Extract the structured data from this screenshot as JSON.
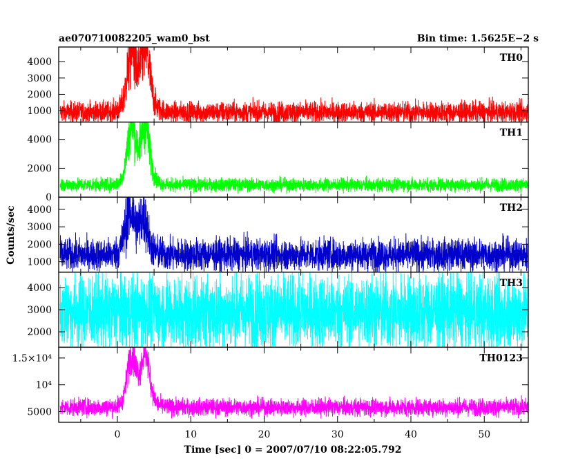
{
  "header": {
    "title": "ae070710082205_wam0_bst",
    "bin_time": "Bin time: 1.5625E−2 s"
  },
  "ylabel": "Counts/sec",
  "xlabel": "Time [sec] 0 = 2007/07/10 08:22:05.792",
  "chart_data": {
    "type": "line",
    "title": "ae070710082205_wam0_bst",
    "subtitle": "Bin time: 1.5625E−2 s",
    "xlabel": "Time [sec] 0 = 2007/07/10 08:22:05.792",
    "ylabel": "Counts/sec",
    "xlim": [
      -8,
      56
    ],
    "xticks": [
      0,
      10,
      20,
      30,
      40,
      50
    ],
    "panels": [
      {
        "name": "TH0",
        "color": "#ff0000",
        "ylim": [
          300,
          4900
        ],
        "yticks": [
          1000,
          2000,
          3000,
          4000
        ],
        "ytick_labels": [
          "1000",
          "2000",
          "3000",
          "4000"
        ],
        "baseline_mean": 900,
        "baseline_noise": 320,
        "peaks": [
          {
            "t": 1.9,
            "amp": 2900,
            "w": 0.8
          },
          {
            "t": 3.8,
            "amp": 3000,
            "w": 0.8
          },
          {
            "t": 3.0,
            "amp": 1200,
            "w": 2.0
          }
        ]
      },
      {
        "name": "TH1",
        "color": "#00ff00",
        "ylim": [
          0,
          5200
        ],
        "yticks": [
          0,
          2000,
          4000
        ],
        "ytick_labels": [
          "0",
          "2000",
          "4000"
        ],
        "baseline_mean": 850,
        "baseline_noise": 230,
        "peaks": [
          {
            "t": 1.9,
            "amp": 3300,
            "w": 0.8
          },
          {
            "t": 3.8,
            "amp": 3200,
            "w": 0.8
          },
          {
            "t": 3.0,
            "amp": 1100,
            "w": 2.0
          }
        ]
      },
      {
        "name": "TH2",
        "color": "#0000cc",
        "ylim": [
          400,
          4700
        ],
        "yticks": [
          1000,
          2000,
          3000,
          4000
        ],
        "ytick_labels": [
          "1000",
          "2000",
          "3000",
          "4000"
        ],
        "baseline_mean": 1400,
        "baseline_noise": 450,
        "peaks": [
          {
            "t": 1.7,
            "amp": 1900,
            "w": 0.9
          },
          {
            "t": 3.6,
            "amp": 1500,
            "w": 0.7
          },
          {
            "t": 2.8,
            "amp": 800,
            "w": 2.0
          }
        ]
      },
      {
        "name": "TH3",
        "color": "#00ffff",
        "ylim": [
          1300,
          4700
        ],
        "yticks": [
          2000,
          3000,
          4000
        ],
        "ytick_labels": [
          "2000",
          "3000",
          "4000"
        ],
        "baseline_mean": 2900,
        "baseline_noise": 850,
        "peaks": []
      },
      {
        "name": "TH0123",
        "color": "#ff00ff",
        "ylim": [
          3000,
          17000
        ],
        "yticks": [
          5000,
          10000,
          15000
        ],
        "ytick_labels": [
          "5000",
          "10⁴",
          "1.5×10⁴"
        ],
        "baseline_mean": 5800,
        "baseline_noise": 800,
        "peaks": [
          {
            "t": 1.9,
            "amp": 7800,
            "w": 0.8
          },
          {
            "t": 3.8,
            "amp": 7600,
            "w": 0.8
          },
          {
            "t": 3.0,
            "amp": 2800,
            "w": 2.0
          }
        ]
      }
    ]
  }
}
